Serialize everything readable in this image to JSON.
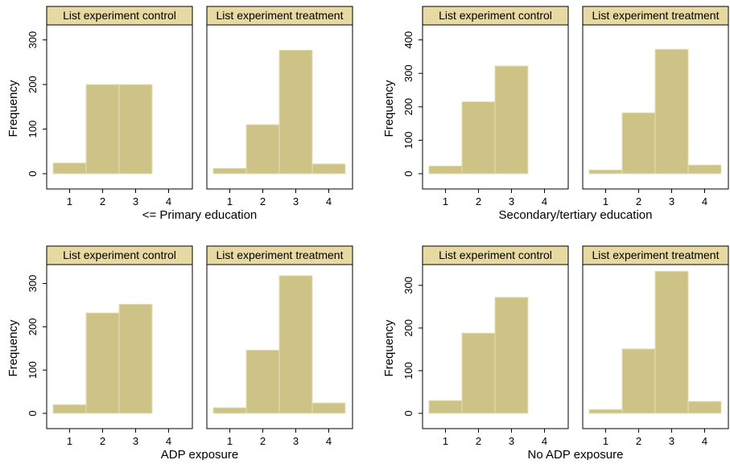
{
  "colors": {
    "bar_fill": "#cdc387",
    "bar_edge": "#e6dfb4",
    "strip_fill": "#e6d9a2",
    "frame": "#000000"
  },
  "chart_data": [
    {
      "type": "bar",
      "subtitle": "<= Primary education",
      "ylabel": "Frequency",
      "ylim": [
        0,
        330
      ],
      "yticks": [
        "0",
        "100",
        "200",
        "300"
      ],
      "categories": [
        "1",
        "2",
        "3",
        "4"
      ],
      "panels": [
        {
          "title": "List experiment control",
          "values": [
            24,
            200,
            200,
            0
          ]
        },
        {
          "title": "List experiment treatment",
          "values": [
            12,
            110,
            277,
            22
          ]
        }
      ]
    },
    {
      "type": "bar",
      "subtitle": "Secondary/tertiary education",
      "ylabel": "Frequency",
      "ylim": [
        0,
        440
      ],
      "yticks": [
        "0",
        "100",
        "200",
        "300",
        "400"
      ],
      "categories": [
        "1",
        "2",
        "3",
        "4"
      ],
      "panels": [
        {
          "title": "List experiment control",
          "values": [
            23,
            215,
            322,
            0
          ]
        },
        {
          "title": "List experiment treatment",
          "values": [
            11,
            182,
            372,
            26
          ]
        }
      ]
    },
    {
      "type": "bar",
      "subtitle": "ADP exposure",
      "ylabel": "Frequency",
      "ylim": [
        0,
        340
      ],
      "yticks": [
        "0",
        "100",
        "200",
        "300"
      ],
      "categories": [
        "1",
        "2",
        "3",
        "4"
      ],
      "panels": [
        {
          "title": "List experiment control",
          "values": [
            20,
            232,
            252,
            0
          ]
        },
        {
          "title": "List experiment treatment",
          "values": [
            13,
            146,
            318,
            24
          ]
        }
      ]
    },
    {
      "type": "bar",
      "subtitle": "No ADP exposure",
      "ylabel": "Frequency",
      "ylim": [
        0,
        345
      ],
      "yticks": [
        "0",
        "100",
        "200",
        "300"
      ],
      "categories": [
        "1",
        "2",
        "3",
        "4"
      ],
      "panels": [
        {
          "title": "List experiment control",
          "values": [
            30,
            188,
            272,
            0
          ]
        },
        {
          "title": "List experiment treatment",
          "values": [
            9,
            151,
            333,
            28
          ]
        }
      ]
    }
  ]
}
